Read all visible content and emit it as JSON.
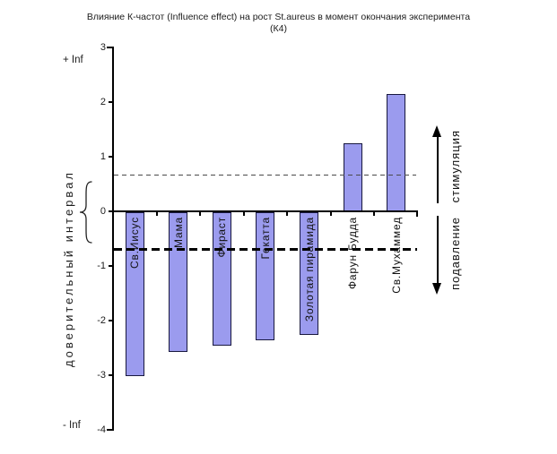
{
  "figure": {
    "title_line1": "Влияние К-частот (Influence effect) на рост St.aureus в момент окончания эксперимента",
    "title_line2": "(К4)"
  },
  "chart_data": {
    "type": "bar",
    "title": "Влияние К-частот (Influence effect) на рост St.aureus в момент окончания эксперимента (К4)",
    "categories": [
      "Св.Иисус",
      "Мама",
      "Фираст",
      "Гекатта",
      "Золотая пирамида",
      "Фарун Будда",
      "Св.Мухаммед"
    ],
    "values": [
      -3.0,
      -2.55,
      -2.45,
      -2.35,
      -2.25,
      1.25,
      2.15
    ],
    "ylabel": "доверительный интервал",
    "ylim": [
      -4,
      3
    ],
    "yticks": [
      "3",
      "2",
      "1",
      "0",
      "-1",
      "-2",
      "-3",
      "-4"
    ],
    "ytick_values": [
      3,
      2,
      1,
      0,
      -1,
      -2,
      -3,
      -4
    ],
    "y_axis_top_label": "+ Inf",
    "y_axis_bottom_label": "- Inf",
    "grid": false,
    "legend": "none",
    "reference_lines": [
      {
        "value": 0.68,
        "style": "thin-dashed",
        "color": "#4a4a4a",
        "meaning": "confidence interval upper bound"
      },
      {
        "value": -0.7,
        "style": "thick-dashed",
        "color": "#000000",
        "meaning": "confidence interval lower bound"
      }
    ],
    "right_annotations": [
      {
        "label": "стимуляция",
        "direction": "up"
      },
      {
        "label": "подавление",
        "direction": "down"
      }
    ],
    "colors": {
      "bar_fill": "#9b9bee",
      "bar_border": "#18183f",
      "axis": "#000000"
    }
  }
}
